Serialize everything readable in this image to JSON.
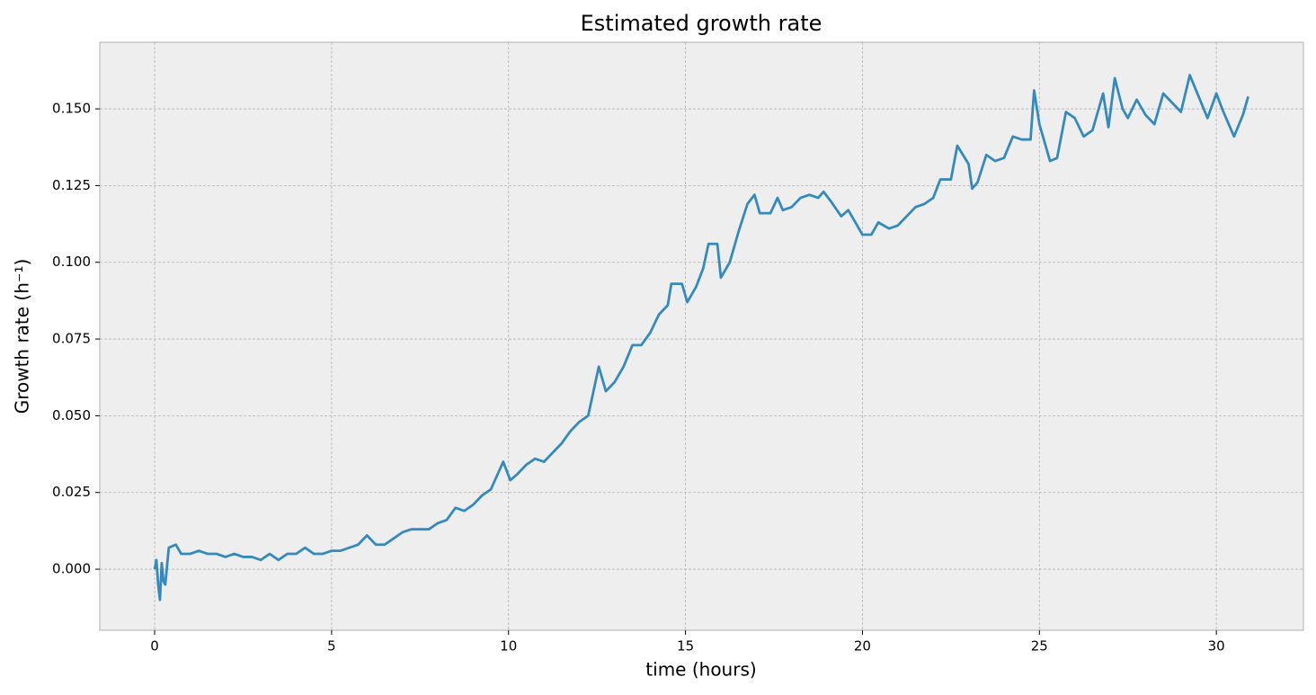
{
  "chart_data": {
    "type": "line",
    "title": "Estimated growth rate",
    "x_label": "time (hours)",
    "y_label": "Growth rate (h⁻¹)",
    "xlim": [
      -1.55,
      32.46
    ],
    "ylim": [
      -0.0199,
      0.1717
    ],
    "xticks": [
      0,
      5,
      10,
      15,
      20,
      25,
      30
    ],
    "yticks": [
      {
        "value": 0,
        "label": "0.000"
      },
      {
        "value": 0.025,
        "label": "0.025"
      },
      {
        "value": 0.05,
        "label": "0.050"
      },
      {
        "value": 0.075,
        "label": "0.075"
      },
      {
        "value": 0.1,
        "label": "0.100"
      },
      {
        "value": 0.125,
        "label": "0.125"
      },
      {
        "value": 0.15,
        "label": "0.150"
      }
    ],
    "grid": true,
    "series": [
      {
        "color": "#348abd",
        "x": [
          0,
          0.05,
          0.1,
          0.15,
          0.2,
          0.25,
          0.3,
          0.4,
          0.6,
          0.75,
          1,
          1.25,
          1.5,
          1.75,
          2,
          2.25,
          2.5,
          2.75,
          3,
          3.25,
          3.5,
          3.75,
          4,
          4.25,
          4.5,
          4.75,
          5,
          5.25,
          5.5,
          5.75,
          6,
          6.25,
          6.5,
          6.75,
          7,
          7.25,
          7.5,
          7.75,
          8,
          8.25,
          8.5,
          8.75,
          9,
          9.25,
          9.5,
          9.85,
          10.05,
          10.25,
          10.5,
          10.75,
          11,
          11.25,
          11.5,
          11.75,
          12,
          12.25,
          12.55,
          12.75,
          13,
          13.25,
          13.5,
          13.75,
          14,
          14.25,
          14.5,
          14.6,
          14.9,
          15.05,
          15.3,
          15.5,
          15.65,
          15.9,
          16,
          16.25,
          16.5,
          16.75,
          16.95,
          17.1,
          17.4,
          17.6,
          17.75,
          18,
          18.25,
          18.5,
          18.75,
          18.9,
          19.1,
          19.4,
          19.6,
          19.75,
          20,
          20.25,
          20.45,
          20.75,
          21,
          21.25,
          21.5,
          21.75,
          22,
          22.2,
          22.5,
          22.68,
          23,
          23.1,
          23.25,
          23.5,
          23.75,
          24,
          24.25,
          24.5,
          24.75,
          24.85,
          25,
          25.3,
          25.5,
          25.75,
          26,
          26.25,
          26.5,
          26.8,
          26.95,
          27.13,
          27.35,
          27.5,
          27.75,
          28,
          28.25,
          28.5,
          28.75,
          29,
          29.25,
          29.5,
          29.75,
          30,
          30.2,
          30.5,
          30.75,
          30.9
        ],
        "values": [
          0,
          0.003,
          -0.005,
          -0.01,
          0.002,
          -0.004,
          -0.005,
          0.007,
          0.008,
          0.005,
          0.005,
          0.006,
          0.005,
          0.005,
          0.004,
          0.005,
          0.004,
          0.004,
          0.003,
          0.005,
          0.003,
          0.005,
          0.005,
          0.007,
          0.005,
          0.005,
          0.006,
          0.006,
          0.007,
          0.008,
          0.011,
          0.008,
          0.008,
          0.01,
          0.012,
          0.013,
          0.013,
          0.013,
          0.015,
          0.016,
          0.02,
          0.019,
          0.021,
          0.024,
          0.026,
          0.035,
          0.029,
          0.031,
          0.034,
          0.036,
          0.035,
          0.038,
          0.041,
          0.045,
          0.048,
          0.05,
          0.066,
          0.058,
          0.061,
          0.066,
          0.073,
          0.073,
          0.077,
          0.083,
          0.086,
          0.093,
          0.093,
          0.087,
          0.092,
          0.098,
          0.106,
          0.106,
          0.095,
          0.1,
          0.11,
          0.119,
          0.122,
          0.116,
          0.116,
          0.121,
          0.117,
          0.118,
          0.121,
          0.122,
          0.121,
          0.123,
          0.12,
          0.115,
          0.117,
          0.114,
          0.109,
          0.109,
          0.113,
          0.111,
          0.112,
          0.115,
          0.118,
          0.119,
          0.121,
          0.127,
          0.127,
          0.138,
          0.132,
          0.124,
          0.126,
          0.135,
          0.133,
          0.134,
          0.141,
          0.14,
          0.14,
          0.156,
          0.145,
          0.133,
          0.134,
          0.149,
          0.147,
          0.141,
          0.143,
          0.155,
          0.144,
          0.16,
          0.15,
          0.147,
          0.153,
          0.148,
          0.145,
          0.155,
          0.152,
          0.149,
          0.161,
          0.154,
          0.147,
          0.155,
          0.149,
          0.141,
          0.148,
          0.154
        ]
      }
    ]
  }
}
